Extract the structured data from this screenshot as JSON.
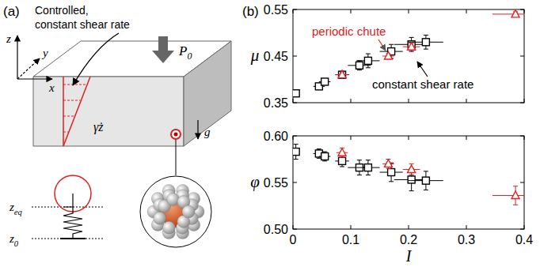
{
  "diagram": {
    "letter": "(a)",
    "annotation": [
      "Controlled,",
      "constant shear rate"
    ],
    "pressure": {
      "base": "P",
      "sub": "0"
    },
    "shear": "γ̇z",
    "axes": [
      "x",
      "y",
      "z"
    ],
    "gravity": "g",
    "z_eq": {
      "base": "z",
      "sub": "eq"
    },
    "z_0": {
      "base": "z",
      "sub": "0"
    }
  },
  "charts_letter": "(b)",
  "chart_data": [
    {
      "type": "scatter",
      "y_label": "μ",
      "xlim": [
        0,
        0.4
      ],
      "xticks": [
        0,
        0.1,
        0.2,
        0.3,
        0.4
      ],
      "ylim": [
        0.35,
        0.55
      ],
      "yticks": [
        0.35,
        0.45,
        0.55
      ],
      "tick_labels": "y",
      "series": [
        {
          "name": "constant shear rate",
          "color": "#000000",
          "marker": "square",
          "x": [
            0.005,
            0.045,
            0.055,
            0.085,
            0.115,
            0.13,
            0.17,
            0.205,
            0.23
          ],
          "values": [
            0.37,
            0.385,
            0.395,
            0.41,
            0.43,
            0.44,
            0.46,
            0.475,
            0.48
          ],
          "errors": [
            0.005,
            0.005,
            0.005,
            0.007,
            0.01,
            0.015,
            0.015,
            0.015,
            0.015
          ],
          "x_errors": [
            0.005,
            0.01,
            0.01,
            0.012,
            0.02,
            0.02,
            0.02,
            0.03,
            0.03
          ]
        },
        {
          "name": "periodic chute",
          "color": "#e02020",
          "marker": "triangle",
          "x": [
            0.085,
            0.165,
            0.205,
            0.385
          ],
          "values": [
            0.41,
            0.45,
            0.47,
            0.54
          ],
          "errors": [
            0.005,
            0.005,
            0.008,
            0.005
          ],
          "x_errors": [
            0.01,
            0.01,
            0.015,
            0.04
          ]
        }
      ]
    },
    {
      "type": "scatter",
      "y_label": "φ",
      "x_label": "I",
      "xlim": [
        0,
        0.4
      ],
      "xticks": [
        0,
        0.1,
        0.2,
        0.3,
        0.4
      ],
      "ylim": [
        0.5,
        0.6
      ],
      "yticks": [
        {
          "value": 0.5,
          "label": "0.50"
        },
        0.55,
        {
          "value": 0.6,
          "label": "0.60"
        }
      ],
      "series": [
        {
          "color": "#000000",
          "marker": "square",
          "x": [
            0.005,
            0.045,
            0.055,
            0.085,
            0.115,
            0.13,
            0.17,
            0.205,
            0.23
          ],
          "values": [
            0.583,
            0.581,
            0.578,
            0.573,
            0.566,
            0.566,
            0.561,
            0.553,
            0.552
          ],
          "errors": [
            0.008,
            0.005,
            0.005,
            0.006,
            0.008,
            0.008,
            0.01,
            0.012,
            0.01
          ],
          "x_errors": [
            0.005,
            0.01,
            0.01,
            0.012,
            0.02,
            0.02,
            0.02,
            0.03,
            0.03
          ]
        },
        {
          "color": "#e02020",
          "marker": "triangle",
          "x": [
            0.085,
            0.165,
            0.205,
            0.385
          ],
          "values": [
            0.582,
            0.57,
            0.564,
            0.536
          ],
          "errors": [
            0.005,
            0.005,
            0.006,
            0.01
          ],
          "x_errors": [
            0.01,
            0.01,
            0.015,
            0.04
          ]
        }
      ]
    }
  ]
}
